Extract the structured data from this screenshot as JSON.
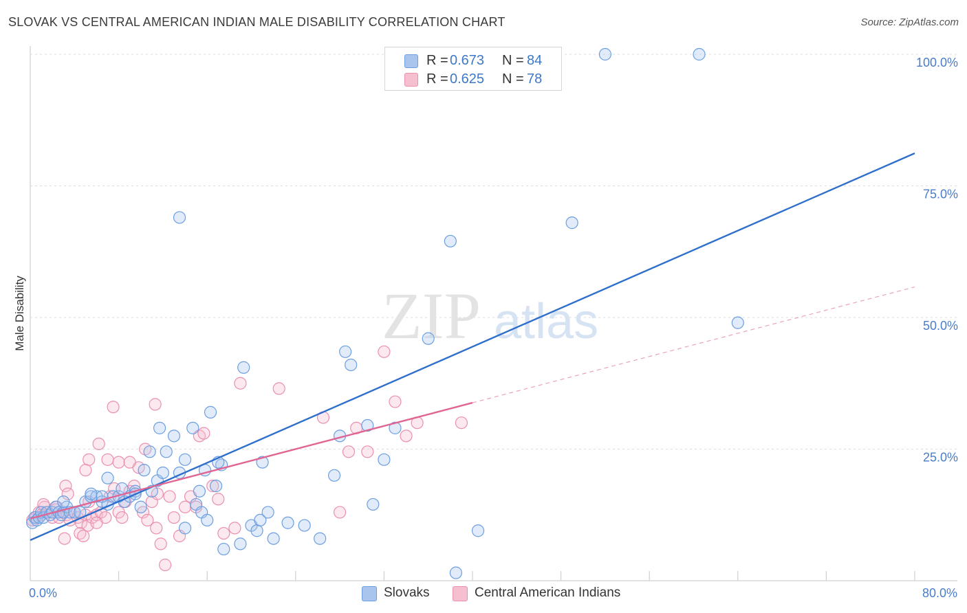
{
  "title": "SLOVAK VS CENTRAL AMERICAN INDIAN MALE DISABILITY CORRELATION CHART",
  "source": "Source: ZipAtlas.com",
  "watermark": {
    "zip": "ZIP",
    "atlas": "atlas"
  },
  "legend": {
    "r_label": "R =",
    "n_label": "N =",
    "rows": [
      {
        "r": "0.673",
        "n": "84",
        "color": "#a9c5ee",
        "border": "#6c9ee0"
      },
      {
        "r": "0.625",
        "n": "78",
        "color": "#f6bfd0",
        "border": "#ea8fae"
      }
    ]
  },
  "bottom_legend": [
    {
      "label": "Slovaks",
      "color": "#a9c5ee",
      "border": "#6c9ee0"
    },
    {
      "label": "Central American Indians",
      "color": "#f6bfd0",
      "border": "#ea8fae"
    }
  ],
  "chart_data": {
    "type": "scatter",
    "ylabel": "Male Disability",
    "xlim": [
      0,
      80
    ],
    "ylim": [
      0,
      100
    ],
    "x_tick_labels": [
      {
        "value": 0,
        "label": "0.0%"
      },
      {
        "value": 80,
        "label": "80.0%"
      }
    ],
    "y_tick_labels": [
      {
        "value": 25,
        "label": "25.0%"
      },
      {
        "value": 50,
        "label": "50.0%"
      },
      {
        "value": 75,
        "label": "75.0%"
      },
      {
        "value": 100,
        "label": "100.0%"
      }
    ],
    "x_minor_ticks": [
      8,
      16,
      24,
      32,
      40,
      48,
      56,
      64,
      72,
      80
    ],
    "grid": "horizontal-dashed",
    "series": [
      {
        "name": "Slovaks",
        "color": "#6c9ee0",
        "fill": "#a9c5ee",
        "trend": {
          "x": [
            0,
            80
          ],
          "y": [
            7.7,
            81.2
          ],
          "color": "#2f6fcc",
          "dashed": false
        },
        "points": [
          [
            0.2,
            11
          ],
          [
            0.4,
            12
          ],
          [
            0.6,
            11.5
          ],
          [
            0.8,
            12
          ],
          [
            1,
            13
          ],
          [
            1.2,
            12
          ],
          [
            1.5,
            13
          ],
          [
            1.8,
            12.5
          ],
          [
            2,
            13
          ],
          [
            2.3,
            14
          ],
          [
            2.6,
            13
          ],
          [
            2.8,
            12.5
          ],
          [
            3,
            13
          ],
          [
            3.3,
            14
          ],
          [
            3.6,
            13
          ],
          [
            4,
            13
          ],
          [
            4.5,
            13
          ],
          [
            3,
            15
          ],
          [
            5,
            15
          ],
          [
            5.5,
            16
          ],
          [
            6,
            16
          ],
          [
            6.5,
            15
          ],
          [
            7,
            14.5
          ],
          [
            7.5,
            16
          ],
          [
            8,
            16
          ],
          [
            8.5,
            15
          ],
          [
            9,
            16
          ],
          [
            9.5,
            17
          ],
          [
            10,
            14
          ],
          [
            5.5,
            16.5
          ],
          [
            6.5,
            16
          ],
          [
            7,
            19.5
          ],
          [
            8.3,
            17.5
          ],
          [
            9.5,
            16.5
          ],
          [
            10.3,
            21
          ],
          [
            11,
            17
          ],
          [
            11.5,
            19
          ],
          [
            12,
            20.5
          ],
          [
            10.8,
            24.5
          ],
          [
            11.7,
            29
          ],
          [
            12.3,
            24.5
          ],
          [
            13,
            27.5
          ],
          [
            13.5,
            20.5
          ],
          [
            14,
            23
          ],
          [
            14.7,
            29
          ],
          [
            15.3,
            17
          ],
          [
            15.8,
            21
          ],
          [
            16.3,
            32
          ],
          [
            16.8,
            18
          ],
          [
            17.3,
            22
          ],
          [
            14,
            10
          ],
          [
            15,
            14.5
          ],
          [
            15.5,
            13
          ],
          [
            16,
            11.5
          ],
          [
            17,
            22.5
          ],
          [
            17.5,
            6
          ],
          [
            19,
            7
          ],
          [
            20,
            10.5
          ],
          [
            20.5,
            9.5
          ],
          [
            20.8,
            11.5
          ],
          [
            21.5,
            13
          ],
          [
            22,
            8
          ],
          [
            19.3,
            40.5
          ],
          [
            21,
            22.5
          ],
          [
            23.3,
            11
          ],
          [
            24.8,
            10.5
          ],
          [
            26.2,
            8
          ],
          [
            27.5,
            20
          ],
          [
            28,
            27.5
          ],
          [
            28.5,
            43.5
          ],
          [
            29,
            41
          ],
          [
            30.5,
            29.5
          ],
          [
            31,
            14.5
          ],
          [
            32,
            23
          ],
          [
            33,
            29
          ],
          [
            36,
            46
          ],
          [
            38,
            64.5
          ],
          [
            38.5,
            1.5
          ],
          [
            40.5,
            9.5
          ],
          [
            52,
            100
          ],
          [
            60.5,
            100
          ],
          [
            49,
            68
          ],
          [
            64,
            49
          ],
          [
            13.5,
            69
          ]
        ]
      },
      {
        "name": "Central American Indians",
        "color": "#ea8fae",
        "fill": "#f6bfd0",
        "trend": {
          "x": [
            0,
            40
          ],
          "y": [
            11.8,
            33.8
          ],
          "color": "#e06592",
          "dashed": false
        },
        "trend_ext": {
          "x": [
            40,
            80
          ],
          "y": [
            33.8,
            55.8
          ],
          "color": "#e8a3bb",
          "dashed": true
        },
        "points": [
          [
            0.2,
            11.5
          ],
          [
            0.5,
            12
          ],
          [
            0.8,
            13
          ],
          [
            1,
            12.5
          ],
          [
            1.3,
            14
          ],
          [
            1.6,
            13
          ],
          [
            2,
            12
          ],
          [
            2.3,
            13.5
          ],
          [
            2.6,
            12
          ],
          [
            3,
            13
          ],
          [
            3.3,
            12.5
          ],
          [
            3.6,
            11.5
          ],
          [
            4,
            13
          ],
          [
            4.3,
            12
          ],
          [
            4.6,
            11
          ],
          [
            5,
            12.5
          ],
          [
            5.3,
            15
          ],
          [
            1.2,
            14.5
          ],
          [
            3.2,
            18
          ],
          [
            3.4,
            16.5
          ],
          [
            4.5,
            9
          ],
          [
            4.8,
            8.5
          ],
          [
            5.2,
            10.5
          ],
          [
            5.6,
            12
          ],
          [
            6,
            12.5
          ],
          [
            6.4,
            13
          ],
          [
            6.8,
            12
          ],
          [
            7.2,
            16
          ],
          [
            7.6,
            17.5
          ],
          [
            8,
            13
          ],
          [
            8.3,
            12
          ],
          [
            8.6,
            15
          ],
          [
            9,
            17
          ],
          [
            9.4,
            18
          ],
          [
            9.8,
            21.5
          ],
          [
            10.2,
            13
          ],
          [
            10.6,
            11.5
          ],
          [
            11,
            15
          ],
          [
            11.4,
            10
          ],
          [
            11.8,
            7
          ],
          [
            12.2,
            3
          ],
          [
            12.6,
            16
          ],
          [
            13,
            12
          ],
          [
            13.5,
            8.5
          ],
          [
            14,
            14
          ],
          [
            14.5,
            16
          ],
          [
            15,
            14
          ],
          [
            15.3,
            27.5
          ],
          [
            15.7,
            28
          ],
          [
            16.5,
            18
          ],
          [
            17,
            15.5
          ],
          [
            17.5,
            9
          ],
          [
            18.5,
            10
          ],
          [
            19,
            37.5
          ],
          [
            22.5,
            36.5
          ],
          [
            26.5,
            31
          ],
          [
            28,
            13
          ],
          [
            28.8,
            24.5
          ],
          [
            29.5,
            29
          ],
          [
            30.5,
            24.5
          ],
          [
            32,
            43.5
          ],
          [
            33,
            34
          ],
          [
            34,
            27.5
          ],
          [
            35,
            30
          ],
          [
            39,
            30
          ],
          [
            7.5,
            33
          ],
          [
            11.3,
            33.5
          ],
          [
            6.2,
            26
          ],
          [
            7,
            23
          ],
          [
            8,
            22.5
          ],
          [
            9,
            22.5
          ],
          [
            10.4,
            25
          ],
          [
            5.3,
            23
          ],
          [
            5,
            21
          ],
          [
            2.4,
            14
          ],
          [
            3.1,
            8
          ],
          [
            11.5,
            16.5
          ],
          [
            6,
            11
          ]
        ]
      }
    ]
  }
}
